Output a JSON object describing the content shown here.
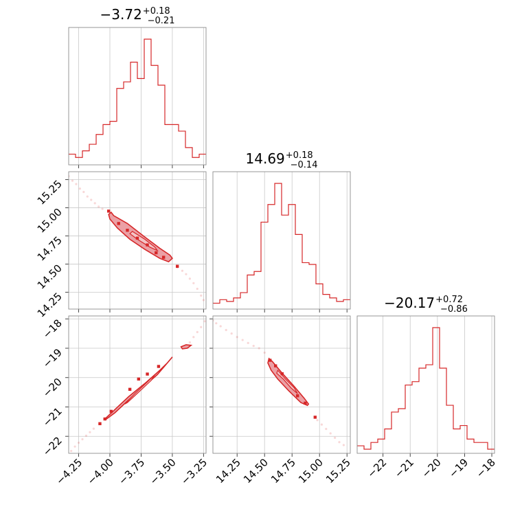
{
  "figure": {
    "color": "#d62728",
    "fill_color": "#e88f95",
    "grid": true
  },
  "chart_data": [
    {
      "type": "histogram",
      "panel": "diag-0",
      "parameter_index": 0,
      "title": {
        "value": "−3.72",
        "plus": "+0.18",
        "minus": "−0.21"
      },
      "xlim": [
        -4.33,
        -3.23
      ],
      "bin_edges": [
        -4.33,
        -4.275,
        -4.22,
        -4.165,
        -4.11,
        -4.055,
        -4.0,
        -3.945,
        -3.89,
        -3.835,
        -3.78,
        -3.725,
        -3.67,
        -3.615,
        -3.56,
        -3.505,
        -3.45,
        -3.395,
        -3.34,
        -3.285,
        -3.23
      ],
      "counts": [
        2,
        1,
        3,
        5,
        8,
        11,
        12,
        22,
        24,
        30,
        25,
        37,
        29,
        23,
        11,
        11,
        9,
        4,
        1,
        2
      ]
    },
    {
      "type": "histogram",
      "panel": "diag-1",
      "parameter_index": 1,
      "title": {
        "value": "14.69",
        "plus": "+0.18",
        "minus": "−0.14"
      },
      "xlim": [
        14.03,
        15.28
      ],
      "bin_edges": [
        14.03,
        14.0925,
        14.155,
        14.2175,
        14.28,
        14.3425,
        14.405,
        14.4675,
        14.53,
        14.5925,
        14.655,
        14.7175,
        14.78,
        14.8425,
        14.905,
        14.9675,
        15.03,
        15.0925,
        15.155,
        15.2175,
        15.28
      ],
      "counts": [
        1,
        3,
        2,
        4,
        7,
        17,
        19,
        47,
        57,
        69,
        51,
        57,
        40,
        24,
        23,
        12,
        6,
        4,
        2,
        3
      ]
    },
    {
      "type": "histogram",
      "panel": "diag-2",
      "parameter_index": 2,
      "title": {
        "value": "−20.17",
        "plus": "+0.72",
        "minus": "−0.86"
      },
      "xlim": [
        -22.95,
        -17.9
      ],
      "bin_edges": [
        -22.95,
        -22.6975,
        -22.445,
        -22.1925,
        -21.94,
        -21.6875,
        -21.435,
        -21.1825,
        -20.93,
        -20.6775,
        -20.425,
        -20.1725,
        -19.92,
        -19.6675,
        -19.415,
        -19.1625,
        -18.91,
        -18.6575,
        -18.405,
        -18.1525,
        -17.9
      ],
      "counts": [
        1,
        0,
        2,
        3,
        6,
        11,
        12,
        19,
        20,
        24,
        25,
        36,
        24,
        13,
        6,
        7,
        3,
        2,
        2,
        0
      ]
    },
    {
      "type": "scatter",
      "panel": "joint-1-0",
      "x_parameter": 0,
      "y_parameter": 1,
      "xlim": [
        -4.33,
        -3.23
      ],
      "ylim": [
        14.1,
        15.32
      ],
      "contours": [
        {
          "level": "outer",
          "points": [
            [
              -3.99,
              14.96
            ],
            [
              -3.97,
              14.93
            ],
            [
              -3.86,
              14.86
            ],
            [
              -3.72,
              14.74
            ],
            [
              -3.6,
              14.64
            ],
            [
              -3.52,
              14.58
            ],
            [
              -3.5,
              14.55
            ],
            [
              -3.53,
              14.52
            ],
            [
              -3.6,
              14.55
            ],
            [
              -3.72,
              14.63
            ],
            [
              -3.84,
              14.72
            ],
            [
              -3.94,
              14.82
            ],
            [
              -4.0,
              14.9
            ],
            [
              -4.01,
              14.94
            ]
          ]
        },
        {
          "level": "inner",
          "points": [
            [
              -3.82,
              14.79
            ],
            [
              -3.72,
              14.72
            ],
            [
              -3.64,
              14.65
            ],
            [
              -3.62,
              14.62
            ],
            [
              -3.68,
              14.65
            ],
            [
              -3.78,
              14.72
            ],
            [
              -3.84,
              14.77
            ]
          ]
        }
      ],
      "points": [
        [
          -4.01,
          14.97
        ],
        [
          -3.93,
          14.86
        ],
        [
          -3.7,
          14.67
        ],
        [
          -3.63,
          14.6
        ],
        [
          -3.57,
          14.56
        ],
        [
          -3.46,
          14.48
        ],
        [
          -3.86,
          14.8
        ],
        [
          -3.78,
          14.73
        ]
      ],
      "trail": [
        [
          -4.33,
          15.28
        ],
        [
          -4.3,
          15.24
        ],
        [
          -4.27,
          15.21
        ],
        [
          -4.24,
          15.17
        ],
        [
          -4.21,
          15.14
        ],
        [
          -4.18,
          15.1
        ],
        [
          -4.15,
          15.07
        ],
        [
          -4.12,
          15.04
        ],
        [
          -4.09,
          15.01
        ],
        [
          -4.06,
          14.99
        ],
        [
          -3.46,
          14.47
        ],
        [
          -3.42,
          14.44
        ],
        [
          -3.39,
          14.41
        ],
        [
          -3.36,
          14.37
        ],
        [
          -3.33,
          14.33
        ],
        [
          -3.3,
          14.28
        ],
        [
          -3.27,
          14.22
        ],
        [
          -3.25,
          14.18
        ]
      ]
    },
    {
      "type": "scatter",
      "panel": "joint-2-0",
      "x_parameter": 0,
      "y_parameter": 2,
      "xlim": [
        -4.33,
        -3.23
      ],
      "ylim": [
        -22.58,
        -17.9
      ],
      "contours": [
        {
          "level": "outer",
          "points": [
            [
              -4.03,
              -21.37
            ],
            [
              -3.95,
              -21.05
            ],
            [
              -3.85,
              -20.65
            ],
            [
              -3.72,
              -20.2
            ],
            [
              -3.6,
              -19.75
            ],
            [
              -3.54,
              -19.5
            ],
            [
              -3.5,
              -19.3
            ],
            [
              -3.53,
              -19.45
            ],
            [
              -3.62,
              -19.9
            ],
            [
              -3.74,
              -20.35
            ],
            [
              -3.86,
              -20.8
            ],
            [
              -3.96,
              -21.2
            ],
            [
              -4.04,
              -21.45
            ]
          ]
        },
        {
          "level": "inner",
          "points": [
            [
              -3.88,
              -20.9
            ],
            [
              -3.8,
              -20.55
            ],
            [
              -3.7,
              -20.15
            ],
            [
              -3.64,
              -19.9
            ],
            [
              -3.67,
              -20.1
            ],
            [
              -3.77,
              -20.5
            ],
            [
              -3.86,
              -20.85
            ]
          ]
        },
        {
          "level": "outer",
          "points": [
            [
              -3.43,
              -18.95
            ],
            [
              -3.39,
              -18.88
            ],
            [
              -3.35,
              -18.9
            ],
            [
              -3.38,
              -19.0
            ],
            [
              -3.42,
              -19.02
            ]
          ]
        }
      ],
      "points": [
        [
          -4.08,
          -21.57
        ],
        [
          -4.04,
          -21.41
        ],
        [
          -3.99,
          -21.15
        ],
        [
          -3.84,
          -20.4
        ],
        [
          -3.7,
          -19.88
        ],
        [
          -3.61,
          -19.62
        ],
        [
          -3.77,
          -20.05
        ]
      ],
      "trail": [
        [
          -4.31,
          -22.5
        ],
        [
          -4.28,
          -22.35
        ],
        [
          -4.25,
          -22.22
        ],
        [
          -4.22,
          -22.1
        ],
        [
          -4.19,
          -21.98
        ],
        [
          -4.16,
          -21.86
        ],
        [
          -4.13,
          -21.74
        ],
        [
          -3.36,
          -18.8
        ],
        [
          -3.33,
          -18.62
        ],
        [
          -3.3,
          -18.45
        ],
        [
          -3.27,
          -18.28
        ],
        [
          -3.24,
          -18.08
        ]
      ]
    },
    {
      "type": "scatter",
      "panel": "joint-2-1",
      "x_parameter": 1,
      "y_parameter": 2,
      "xlim": [
        14.03,
        15.28
      ],
      "ylim": [
        -22.58,
        -17.9
      ],
      "contours": [
        {
          "level": "outer",
          "points": [
            [
              14.54,
              -19.35
            ],
            [
              14.57,
              -19.45
            ],
            [
              14.66,
              -19.85
            ],
            [
              14.77,
              -20.3
            ],
            [
              14.86,
              -20.7
            ],
            [
              14.9,
              -20.9
            ],
            [
              14.89,
              -20.95
            ],
            [
              14.83,
              -20.85
            ],
            [
              14.72,
              -20.45
            ],
            [
              14.62,
              -20.05
            ],
            [
              14.56,
              -19.75
            ],
            [
              14.53,
              -19.5
            ]
          ]
        },
        {
          "level": "inner",
          "points": [
            [
              14.62,
              -19.75
            ],
            [
              14.69,
              -20.05
            ],
            [
              14.77,
              -20.35
            ],
            [
              14.8,
              -20.55
            ],
            [
              14.74,
              -20.35
            ],
            [
              14.67,
              -20.05
            ],
            [
              14.61,
              -19.85
            ]
          ]
        }
      ],
      "points": [
        [
          14.55,
          -19.41
        ],
        [
          14.6,
          -19.6
        ],
        [
          14.8,
          -20.62
        ],
        [
          14.87,
          -20.87
        ],
        [
          14.96,
          -21.35
        ],
        [
          14.66,
          -19.87
        ]
      ],
      "trail": [
        [
          14.03,
          -18.05
        ],
        [
          14.06,
          -18.15
        ],
        [
          14.1,
          -18.25
        ],
        [
          14.15,
          -18.38
        ],
        [
          14.2,
          -18.5
        ],
        [
          14.25,
          -18.62
        ],
        [
          14.3,
          -18.72
        ],
        [
          14.35,
          -18.82
        ],
        [
          14.4,
          -18.92
        ],
        [
          14.45,
          -19.0
        ],
        [
          14.5,
          -19.15
        ],
        [
          14.98,
          -21.45
        ],
        [
          15.02,
          -21.6
        ],
        [
          15.06,
          -21.75
        ],
        [
          15.1,
          -21.9
        ],
        [
          15.14,
          -22.05
        ],
        [
          15.18,
          -22.2
        ],
        [
          15.22,
          -22.3
        ]
      ]
    }
  ],
  "axes": {
    "row1_left": {
      "ylim": [
        14.1,
        15.32
      ],
      "ticks": [
        {
          "v": 15.25,
          "label": "15.25"
        },
        {
          "v": 15.0,
          "label": "15.00"
        },
        {
          "v": 14.75,
          "label": "14.75"
        },
        {
          "v": 14.5,
          "label": "14.50"
        },
        {
          "v": 14.25,
          "label": "14.25"
        }
      ]
    },
    "row2_left": {
      "ylim": [
        -22.58,
        -17.9
      ],
      "ticks": [
        {
          "v": -18,
          "label": "−18"
        },
        {
          "v": -19,
          "label": "−19"
        },
        {
          "v": -20,
          "label": "−20"
        },
        {
          "v": -21,
          "label": "−21"
        },
        {
          "v": -22,
          "label": "−22"
        }
      ]
    },
    "col0_bottom": {
      "xlim": [
        -4.33,
        -3.23
      ],
      "ticks": [
        {
          "v": -4.25,
          "label": "−4.25"
        },
        {
          "v": -4.0,
          "label": "−4.00"
        },
        {
          "v": -3.75,
          "label": "−3.75"
        },
        {
          "v": -3.5,
          "label": "−3.50"
        },
        {
          "v": -3.25,
          "label": "−3.25"
        }
      ]
    },
    "col1_bottom": {
      "xlim": [
        14.03,
        15.28
      ],
      "ticks": [
        {
          "v": 14.25,
          "label": "14.25"
        },
        {
          "v": 14.5,
          "label": "14.50"
        },
        {
          "v": 14.75,
          "label": "14.75"
        },
        {
          "v": 15.0,
          "label": "15.00"
        },
        {
          "v": 15.25,
          "label": "15.25"
        }
      ]
    },
    "col2_bottom": {
      "xlim": [
        -22.95,
        -17.9
      ],
      "ticks": [
        {
          "v": -22,
          "label": "−22"
        },
        {
          "v": -21,
          "label": "−21"
        },
        {
          "v": -20,
          "label": "−20"
        },
        {
          "v": -19,
          "label": "−19"
        },
        {
          "v": -18,
          "label": "−18"
        }
      ]
    }
  }
}
